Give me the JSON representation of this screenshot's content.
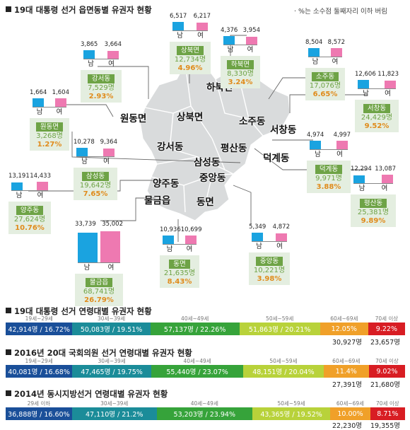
{
  "main_title": "19대 대통령 선거 읍면동별 유권자 현황",
  "note": "· %는 소수점 둘째자리 이하 버림",
  "gender_labels": {
    "male": "남",
    "female": "여"
  },
  "colors": {
    "male": "#1aa3e0",
    "female": "#ee79b1",
    "district_green": "#6ea346",
    "percent_orange": "#e08b1b",
    "map_fill": "#d9dbdc"
  },
  "chart_data": [
    {
      "type": "bar",
      "title": "19대 대통령 선거 읍면동별 유권자 현황",
      "series_names": [
        "남",
        "여"
      ],
      "districts": [
        {
          "name": "상북면",
          "male": "6,517",
          "female": "6,217",
          "total": "12,734명",
          "pct": "4.96%",
          "male_v": 6517,
          "female_v": 6217
        },
        {
          "name": "하북면",
          "male": "4,376",
          "female": "3,954",
          "total": "8,330명",
          "pct": "3.24%",
          "male_v": 4376,
          "female_v": 3954
        },
        {
          "name": "소주동",
          "male": "8,504",
          "female": "8,572",
          "total": "17,076명",
          "pct": "6.65%",
          "male_v": 8504,
          "female_v": 8572
        },
        {
          "name": "강서동",
          "male": "3,865",
          "female": "3,664",
          "total": "7,529명",
          "pct": "2.93%",
          "male_v": 3865,
          "female_v": 3664
        },
        {
          "name": "원동면",
          "male": "1,664",
          "female": "1,604",
          "total": "3,268명",
          "pct": "1.27%",
          "male_v": 1664,
          "female_v": 1604
        },
        {
          "name": "서창동",
          "male": "12,606",
          "female": "11,823",
          "total": "24,429명",
          "pct": "9.52%",
          "male_v": 12606,
          "female_v": 11823
        },
        {
          "name": "덕계동",
          "male": "4,974",
          "female": "4,997",
          "total": "9,971명",
          "pct": "3.88%",
          "male_v": 4974,
          "female_v": 4997
        },
        {
          "name": "삼성동",
          "male": "10,278",
          "female": "9,364",
          "total": "19,642명",
          "pct": "7.65%",
          "male_v": 10278,
          "female_v": 9364
        },
        {
          "name": "양주동",
          "male": "13,191",
          "female": "14,433",
          "total": "27,624명",
          "pct": "10.76%",
          "male_v": 13191,
          "female_v": 14433
        },
        {
          "name": "평산동",
          "male": "12,294",
          "female": "13,087",
          "total": "25,381명",
          "pct": "9.89%",
          "male_v": 12294,
          "female_v": 13087
        },
        {
          "name": "물금읍",
          "male": "33,739",
          "female": "35,002",
          "total": "68,741명",
          "pct": "26.79%",
          "male_v": 33739,
          "female_v": 35002
        },
        {
          "name": "동면",
          "male": "10,936",
          "female": "10,699",
          "total": "21,635명",
          "pct": "8.43%",
          "male_v": 10936,
          "female_v": 10699
        },
        {
          "name": "중앙동",
          "male": "5,349",
          "female": "4,872",
          "total": "10,221명",
          "pct": "3.98%",
          "male_v": 5349,
          "female_v": 4872
        }
      ]
    },
    {
      "type": "bar",
      "title": "19대 대통령 선거 연령대별 유권자 현황",
      "categories": [
        "19세~29세",
        "30세~39세",
        "40세~49세",
        "50세~59세",
        "60세~69세",
        "70세 이상"
      ],
      "labels": [
        "42,914명 / 16.72%",
        "50,083명 / 19.51%",
        "57,137명 / 22.26%",
        "51,863명 / 20.21%",
        "12.05%",
        "9.22%"
      ],
      "percents": [
        16.72,
        19.51,
        22.26,
        20.21,
        12.05,
        9.22
      ],
      "below_labels": [
        "30,927명",
        "23,657명"
      ]
    },
    {
      "type": "bar",
      "title": "2016년 20대 국회의원 선거 연령대별 유권자 현황",
      "categories": [
        "19세~29세",
        "30세~39세",
        "40세~49세",
        "50세~59세",
        "60세~69세",
        "70세 이상"
      ],
      "labels": [
        "40,081명 / 16.68%",
        "47,465명 / 19.75%",
        "55,440명 / 23.07%",
        "48,151명 / 20.04%",
        "11.4%",
        "9.02%"
      ],
      "percents": [
        16.68,
        19.75,
        23.07,
        20.04,
        11.4,
        9.02
      ],
      "below_labels": [
        "27,391명",
        "21,680명"
      ]
    },
    {
      "type": "bar",
      "title": "2014년 동시지방선거 연령대별 유권자 현황",
      "categories": [
        "29세 이하",
        "30세~39세",
        "40세~49세",
        "50세~59세",
        "60세~69세",
        "70세 이상"
      ],
      "labels": [
        "36,888명 / 16.60%",
        "47,110명 / 21.2%",
        "53,203명 / 23.94%",
        "43,365명 / 19.52%",
        "10.00%",
        "8.71%"
      ],
      "percents": [
        16.6,
        21.2,
        23.94,
        19.52,
        10.0,
        8.71
      ],
      "below_labels": [
        "22,230명",
        "19,355명"
      ]
    }
  ],
  "map_labels": [
    "하북면",
    "상북면",
    "원동면",
    "강서동",
    "소주동",
    "서창동",
    "평산동",
    "덕계동",
    "삼성동",
    "중앙동",
    "양주동",
    "물금읍",
    "동면"
  ],
  "segment_colors": [
    "#1a4f99",
    "#1b8c99",
    "#36a33a",
    "#b8d23a",
    "#f0a029",
    "#d81d23"
  ]
}
